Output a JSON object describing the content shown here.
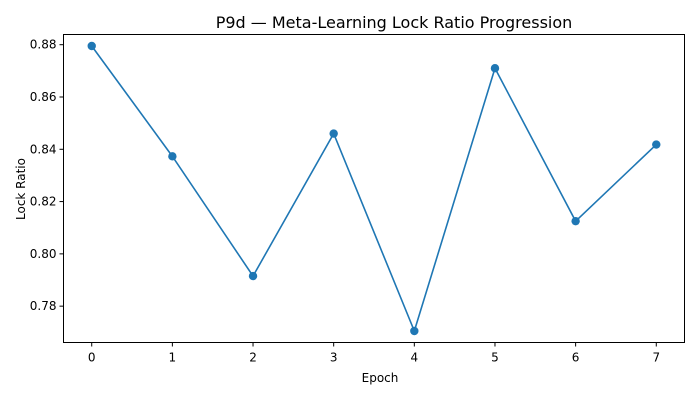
{
  "chart_data": {
    "type": "line",
    "title": "P9d — Meta-Learning Lock Ratio Progression",
    "xlabel": "Epoch",
    "ylabel": "Lock Ratio",
    "x": [
      0,
      1,
      2,
      3,
      4,
      5,
      6,
      7
    ],
    "series": [
      {
        "values": [
          0.8795,
          0.8373,
          0.7915,
          0.846,
          0.7705,
          0.871,
          0.8125,
          0.8418
        ],
        "color": "#1f77b4",
        "marker": "circle"
      }
    ],
    "xlim": [
      -0.35,
      7.35
    ],
    "ylim": [
      0.7661,
      0.8839
    ],
    "xticks": [
      "0",
      "1",
      "2",
      "3",
      "4",
      "5",
      "6",
      "7"
    ],
    "yticks": [
      "0.78",
      "0.80",
      "0.82",
      "0.84",
      "0.86",
      "0.88"
    ],
    "ytick_values": [
      0.78,
      0.8,
      0.82,
      0.84,
      0.86,
      0.88
    ],
    "grid": false,
    "legend": "none"
  }
}
